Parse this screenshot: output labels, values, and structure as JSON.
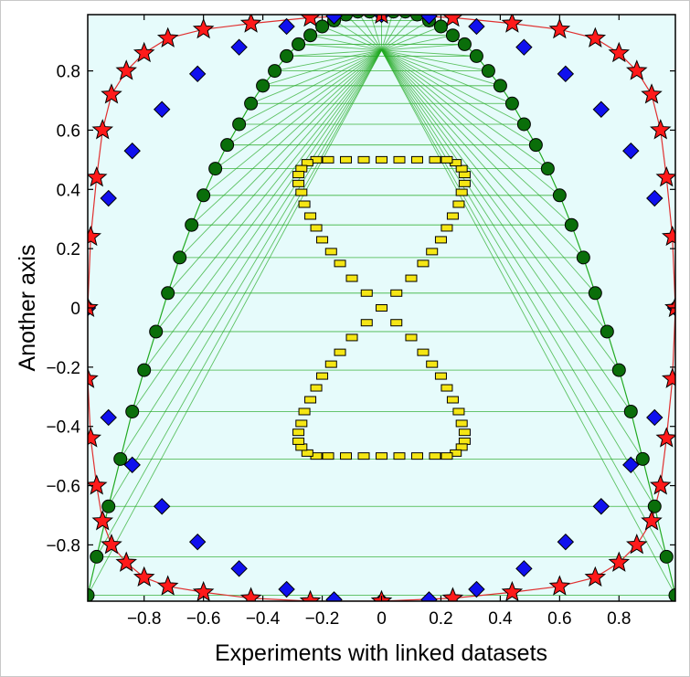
{
  "chart_data": {
    "type": "scatter",
    "title": "",
    "xlabel": "Experiments with linked datasets",
    "ylabel": "Another axis",
    "xlim": [
      -0.99,
      0.99
    ],
    "ylim": [
      -0.99,
      0.99
    ],
    "grid": false,
    "legend": "none",
    "background_color": "#e6fbfb",
    "x_ticks": [
      -0.8,
      -0.6,
      -0.4,
      -0.2,
      0,
      0.2,
      0.4,
      0.6,
      0.8
    ],
    "y_ticks": [
      -0.8,
      -0.6,
      -0.4,
      -0.2,
      0,
      0.2,
      0.4,
      0.6,
      0.8
    ],
    "x_tick_labels": [
      "−0.8",
      "−0.6",
      "−0.4",
      "−0.2",
      "0",
      "0.2",
      "0.4",
      "0.6",
      "0.8"
    ],
    "y_tick_labels": [
      "−0.8",
      "−0.6",
      "−0.4",
      "−0.2",
      "0",
      "0.2",
      "0.4",
      "0.6",
      "0.8"
    ],
    "series": [
      {
        "marker": "star",
        "color": "#ff1a1a",
        "line_color": "#e03030",
        "x": [
          0.99,
          0.98,
          0.96,
          0.94,
          0.91,
          0.86,
          0.8,
          0.72,
          0.6,
          0.44,
          0.24,
          0.0,
          -0.24,
          -0.44,
          -0.6,
          -0.72,
          -0.8,
          -0.86,
          -0.91,
          -0.94,
          -0.96,
          -0.98,
          -0.99,
          -0.99,
          -0.98,
          -0.96,
          -0.94,
          -0.91,
          -0.86,
          -0.8,
          -0.72,
          -0.6,
          -0.44,
          -0.24,
          0.0,
          0.24,
          0.44,
          0.6,
          0.72,
          0.8,
          0.86,
          0.91,
          0.94,
          0.96,
          0.98,
          0.99
        ],
        "y": [
          0.0,
          0.24,
          0.44,
          0.6,
          0.72,
          0.8,
          0.86,
          0.91,
          0.94,
          0.96,
          0.98,
          0.99,
          0.98,
          0.96,
          0.94,
          0.91,
          0.86,
          0.8,
          0.72,
          0.6,
          0.44,
          0.24,
          0.0,
          -0.24,
          -0.44,
          -0.6,
          -0.72,
          -0.8,
          -0.86,
          -0.91,
          -0.94,
          -0.96,
          -0.98,
          -0.99,
          -0.99,
          -0.98,
          -0.96,
          -0.94,
          -0.91,
          -0.86,
          -0.8,
          -0.72,
          -0.6,
          -0.44,
          -0.24,
          0.0
        ]
      },
      {
        "marker": "diamond",
        "color": "#1010ee",
        "x": [
          0.99,
          0.92,
          0.84,
          0.74,
          0.62,
          0.48,
          0.32,
          0.16,
          0.0,
          -0.16,
          -0.32,
          -0.48,
          -0.62,
          -0.74,
          -0.84,
          -0.92,
          -0.99,
          -0.92,
          -0.84,
          -0.74,
          -0.62,
          -0.48,
          -0.32,
          -0.16,
          0.0,
          0.16,
          0.32,
          0.48,
          0.62,
          0.74,
          0.84,
          0.92
        ],
        "y": [
          0.0,
          0.37,
          0.53,
          0.67,
          0.79,
          0.88,
          0.95,
          0.985,
          0.99,
          0.985,
          0.95,
          0.88,
          0.79,
          0.67,
          0.53,
          0.37,
          0.0,
          -0.37,
          -0.53,
          -0.67,
          -0.79,
          -0.88,
          -0.95,
          -0.985,
          -0.99,
          -0.985,
          -0.95,
          -0.88,
          -0.79,
          -0.67,
          -0.53,
          -0.37
        ]
      },
      {
        "marker": "circle",
        "color": "#0a6e0a",
        "line_color": "#22aa22",
        "x": [
          -0.99,
          -0.96,
          -0.92,
          -0.88,
          -0.84,
          -0.8,
          -0.76,
          -0.72,
          -0.68,
          -0.64,
          -0.6,
          -0.56,
          -0.52,
          -0.48,
          -0.44,
          -0.4,
          -0.36,
          -0.32,
          -0.28,
          -0.24,
          -0.2,
          -0.16,
          -0.12,
          -0.08,
          -0.04,
          0.0,
          0.04,
          0.08,
          0.12,
          0.16,
          0.2,
          0.24,
          0.28,
          0.32,
          0.36,
          0.4,
          0.44,
          0.48,
          0.52,
          0.56,
          0.6,
          0.64,
          0.68,
          0.72,
          0.76,
          0.8,
          0.84,
          0.88,
          0.92,
          0.96,
          0.99
        ],
        "y": [
          -0.97,
          -0.84,
          -0.67,
          -0.51,
          -0.35,
          -0.21,
          -0.08,
          0.05,
          0.17,
          0.28,
          0.38,
          0.47,
          0.55,
          0.62,
          0.69,
          0.75,
          0.8,
          0.85,
          0.89,
          0.92,
          0.95,
          0.97,
          0.99,
          1.0,
          1.0,
          1.0,
          1.0,
          1.0,
          0.99,
          0.97,
          0.95,
          0.92,
          0.89,
          0.85,
          0.8,
          0.75,
          0.69,
          0.62,
          0.55,
          0.47,
          0.38,
          0.28,
          0.17,
          0.05,
          -0.08,
          -0.21,
          -0.35,
          -0.51,
          -0.67,
          -0.84,
          -0.97
        ]
      },
      {
        "marker": "square",
        "color": "#f5e614",
        "x": [
          0.0,
          0.05,
          0.1,
          0.14,
          0.17,
          0.2,
          0.22,
          0.24,
          0.26,
          0.27,
          0.28,
          0.28,
          0.27,
          0.25,
          0.22,
          0.18,
          0.12,
          0.06,
          0.0,
          -0.06,
          -0.12,
          -0.18,
          -0.22,
          -0.25,
          -0.27,
          -0.28,
          -0.28,
          -0.27,
          -0.26,
          -0.24,
          -0.22,
          -0.2,
          -0.17,
          -0.14,
          -0.1,
          -0.05,
          0.0,
          0.05,
          0.1,
          0.14,
          0.17,
          0.2,
          0.22,
          0.24,
          0.26,
          0.27,
          0.28,
          0.28,
          0.27,
          0.25,
          0.22,
          0.18,
          0.12,
          0.06,
          0.0,
          -0.06,
          -0.12,
          -0.18,
          -0.22,
          -0.25,
          -0.27,
          -0.28,
          -0.28,
          -0.27,
          -0.26,
          -0.24,
          -0.22,
          -0.2,
          -0.17,
          -0.14,
          -0.1,
          -0.05
        ],
        "y": [
          0.0,
          0.05,
          0.1,
          0.15,
          0.19,
          0.23,
          0.27,
          0.31,
          0.35,
          0.39,
          0.42,
          0.45,
          0.47,
          0.49,
          0.5,
          0.5,
          0.5,
          0.5,
          0.5,
          0.5,
          0.5,
          0.5,
          0.5,
          0.49,
          0.47,
          0.45,
          0.42,
          0.39,
          0.35,
          0.31,
          0.27,
          0.23,
          0.19,
          0.15,
          0.1,
          0.05,
          0.0,
          -0.05,
          -0.1,
          -0.15,
          -0.19,
          -0.23,
          -0.27,
          -0.31,
          -0.35,
          -0.39,
          -0.42,
          -0.45,
          -0.47,
          -0.49,
          -0.5,
          -0.5,
          -0.5,
          -0.5,
          -0.5,
          -0.5,
          -0.5,
          -0.5,
          -0.5,
          -0.49,
          -0.47,
          -0.45,
          -0.42,
          -0.39,
          -0.35,
          -0.31,
          -0.27,
          -0.23,
          -0.19,
          -0.15,
          -0.1,
          -0.05
        ]
      }
    ]
  }
}
